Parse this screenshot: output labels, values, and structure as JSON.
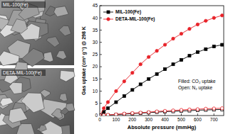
{
  "images": [
    {
      "label": "MIL-100(Fe)"
    },
    {
      "label": "DETA-MIL-100(Fe)"
    }
  ],
  "chart_data": {
    "type": "line",
    "x_label": "Absolute pressure (mmHg)",
    "y_label": "Gas uptake (cm³ g⁻¹) @ 298 K",
    "annotations": [
      "Filled: CO₂ uptake",
      "Open: N₂ uptake"
    ],
    "xlim": [
      0,
      760
    ],
    "xticks": [
      0,
      100,
      200,
      300,
      400,
      500,
      600,
      700
    ],
    "ylim": [
      0,
      45
    ],
    "yticks": [
      0,
      5,
      10,
      15,
      20,
      25,
      30,
      35,
      40,
      45
    ],
    "legend": "upper-left",
    "x": [
      0,
      25,
      50,
      100,
      150,
      200,
      250,
      300,
      350,
      400,
      450,
      500,
      550,
      600,
      650,
      700,
      750
    ],
    "series": [
      {
        "name": "MIL-100(Fe)",
        "color": "#000000",
        "marker": "square",
        "values": [
          0,
          1.5,
          3,
          5.5,
          8,
          10.5,
          12.8,
          15,
          17,
          19,
          21,
          22.8,
          24.5,
          26,
          27.2,
          28.3,
          29
        ]
      },
      {
        "name": "DETA-MIL-100(Fe)",
        "color": "#e8232a",
        "marker": "circle",
        "values": [
          0,
          3,
          5.5,
          10,
          14,
          17.5,
          21,
          24,
          26.5,
          29,
          31.5,
          33.5,
          35.5,
          37.3,
          38.8,
          40,
          41
        ]
      },
      {
        "name": "MIL-100(Fe)",
        "color": "#000000",
        "marker": "square-open",
        "values": [
          0,
          0.1,
          0.2,
          0.4,
          0.6,
          0.8,
          1,
          1.2,
          1.4,
          1.6,
          1.7,
          1.9,
          2,
          2.2,
          2.3,
          2.4,
          2.5
        ]
      },
      {
        "name": "DETA-MIL-100(Fe)",
        "color": "#e8232a",
        "marker": "circle-open",
        "values": [
          0,
          0.15,
          0.3,
          0.5,
          0.8,
          1,
          1.2,
          1.4,
          1.7,
          1.9,
          2.1,
          2.3,
          2.5,
          2.6,
          2.8,
          2.9,
          3
        ]
      }
    ]
  }
}
